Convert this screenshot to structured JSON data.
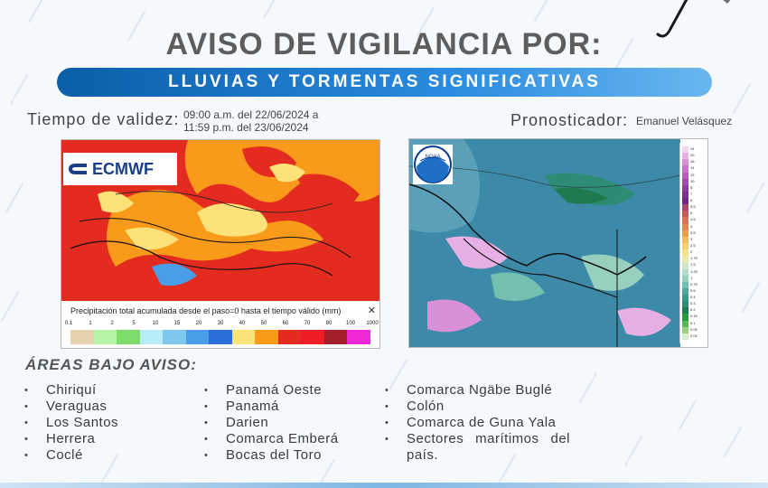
{
  "header": {
    "title": "AVISO DE VIGILANCIA POR:",
    "banner": "LLUVIAS Y TORMENTAS SIGNIFICATIVAS"
  },
  "validity": {
    "label": "Tiempo de validez:",
    "line1": "09:00 a.m. del 22/06/2024 a",
    "line2": "11:59 p.m. del 23/06/2024"
  },
  "forecaster": {
    "label": "Pronosticador:",
    "name": "Emanuel Velásquez"
  },
  "map_ecmwf": {
    "logo_text": "ECMWF",
    "caption": "Precipitación total acumulada desde el paso=0 hasta el tiempo válido (mm)",
    "close_glyph": "✕",
    "scale_labels": [
      "0.1",
      "1",
      "2",
      "5",
      "10",
      "15",
      "20",
      "30",
      "40",
      "50",
      "60",
      "70",
      "80",
      "100",
      "1000"
    ],
    "scale_colors": [
      "#e6d3ad",
      "#b6f4a8",
      "#7ddc6a",
      "#b8ecf8",
      "#7ec8f0",
      "#4a9ee8",
      "#2a6fd8",
      "#fde27a",
      "#f99a1a",
      "#e42b1f",
      "#ee1c25",
      "#a41f2a",
      "#f028d8"
    ]
  },
  "map_noaa": {
    "logo_text": "NOAA",
    "colorbar_labels": [
      "24",
      "20",
      "16",
      "14",
      "12",
      "10",
      "8",
      "7",
      "6",
      "5.5",
      "5",
      "4.5",
      "4",
      "3.5",
      "3",
      "2.5",
      "2",
      "1.75",
      "1.5",
      "1.25",
      "1",
      "0.75",
      "0.5",
      "0.4",
      "0.3",
      "0.2",
      "0.15",
      "0.1",
      "0.05",
      "0.01"
    ],
    "colorbar_colors": [
      "#f2d6f0",
      "#e6b0e4",
      "#d890d8",
      "#c874c8",
      "#b860b8",
      "#a04ca8",
      "#8c3c98",
      "#7e3090",
      "#6e2a84",
      "#a8486c",
      "#c85a5a",
      "#d8705a",
      "#e0884e",
      "#e8a050",
      "#f0bc60",
      "#f4d070",
      "#f4e088",
      "#e8eab0",
      "#cfe6c8",
      "#b4dcc8",
      "#98d0c0",
      "#74c0b0",
      "#50a8a0",
      "#3a9a8a",
      "#2e8c74",
      "#1f7a50",
      "#2a9a40",
      "#58b850",
      "#9ad080",
      "#d8ecd0"
    ]
  },
  "areas": {
    "heading": "ÁREAS BAJO AVISO:",
    "column1": [
      "Chiriquí",
      "Veraguas",
      "Los Santos",
      "Herrera",
      "Coclé"
    ],
    "column2": [
      "Panamá Oeste",
      "Panamá",
      "Darien",
      "Comarca Emberá",
      "Bocas del Toro"
    ],
    "column3": [
      "Comarca Ngäbe Buglé",
      "Colón",
      "Comarca de Guna Yala",
      "Sectores marítimos del país."
    ]
  }
}
